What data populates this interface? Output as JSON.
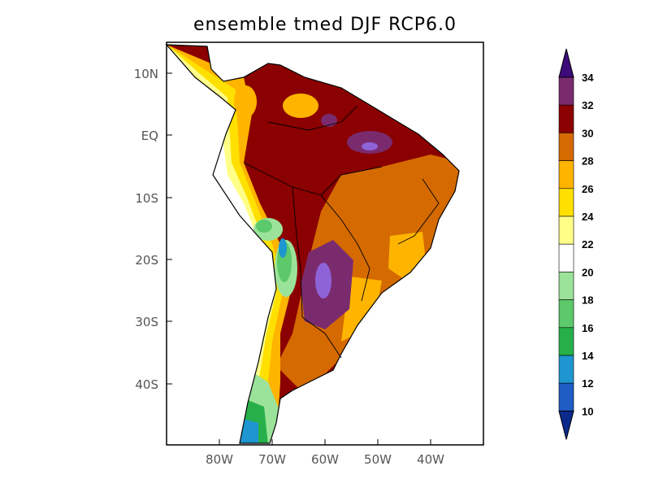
{
  "title": "ensemble tmed DJF RCP6.0",
  "map": {
    "lat_labels": [
      "10N",
      "EQ",
      "10S",
      "20S",
      "30S",
      "40S"
    ],
    "lon_labels": [
      "80W",
      "70W",
      "60W",
      "50W",
      "40W"
    ],
    "lon_range": [
      -90,
      -30
    ],
    "lat_range": [
      -50,
      15
    ]
  },
  "colorbar": {
    "levels": [
      "10",
      "12",
      "14",
      "16",
      "18",
      "20",
      "22",
      "24",
      "26",
      "28",
      "30",
      "32",
      "34"
    ],
    "colors": [
      "#0b2a8c",
      "#1f5cc4",
      "#1e96cf",
      "#27b04a",
      "#5cc96a",
      "#9be39a",
      "#ffffff",
      "#ffff88",
      "#ffe000",
      "#ffb400",
      "#d46a00",
      "#8b0000",
      "#7a2b6e",
      "#8f63d8",
      "#3d0a7a"
    ]
  }
}
